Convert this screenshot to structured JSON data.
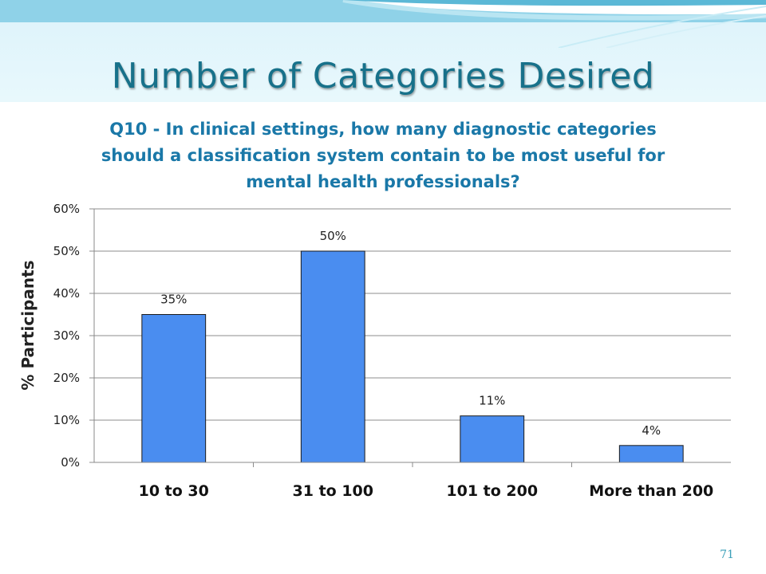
{
  "slide": {
    "title": "Number of Categories Desired",
    "number": "71"
  },
  "chart_data": {
    "type": "bar",
    "title": "Q10 - In clinical settings, how many diagnostic categories should a classification system contain to be most useful for mental health professionals?",
    "xlabel": "",
    "ylabel": "% Participants",
    "categories": [
      "10 to 30",
      "31 to 100",
      "101 to 200",
      "More than 200"
    ],
    "values": [
      35,
      50,
      11,
      4
    ],
    "data_labels": [
      "35%",
      "50%",
      "11%",
      "4%"
    ],
    "yticks": [
      "0%",
      "10%",
      "20%",
      "30%",
      "40%",
      "50%",
      "60%"
    ],
    "ylim": [
      0,
      60
    ],
    "grid": true,
    "legend": "none",
    "bar_color": "#4a8df0"
  },
  "colors": {
    "title": "#17718a",
    "chart_title": "#1a78a8",
    "header_band": "#e3f6fb"
  }
}
